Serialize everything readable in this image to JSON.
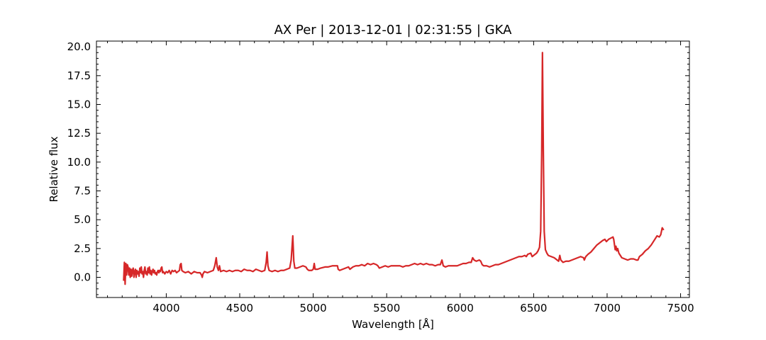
{
  "chart_data": {
    "type": "line",
    "title": "AX Per | 2013-12-01 | 02:31:55 | GKA",
    "xlabel": "Wavelength [Å]",
    "ylabel": "Relative flux",
    "xlim": [
      3525,
      7560
    ],
    "ylim": [
      -1.75,
      20.5
    ],
    "x_ticks": [
      4000,
      4500,
      5000,
      5500,
      6000,
      6500,
      7000,
      7500
    ],
    "x_tick_labels": [
      "4000",
      "4500",
      "5000",
      "5500",
      "6000",
      "6500",
      "7000",
      "7500"
    ],
    "y_ticks": [
      0.0,
      2.5,
      5.0,
      7.5,
      10.0,
      12.5,
      15.0,
      17.5,
      20.0
    ],
    "y_tick_labels": [
      "0.0",
      "2.5",
      "5.0",
      "7.5",
      "10.0",
      "12.5",
      "15.0",
      "17.5",
      "20.0"
    ],
    "grid": false,
    "series": [
      {
        "color": "#d62728",
        "points": [
          [
            3710,
            -0.3
          ],
          [
            3715,
            1.3
          ],
          [
            3720,
            -0.6
          ],
          [
            3725,
            1.2
          ],
          [
            3730,
            0.2
          ],
          [
            3735,
            1.1
          ],
          [
            3740,
            0.9
          ],
          [
            3745,
            0.2
          ],
          [
            3750,
            0.8
          ],
          [
            3755,
            0.0
          ],
          [
            3760,
            0.7
          ],
          [
            3765,
            0.1
          ],
          [
            3770,
            0.6
          ],
          [
            3775,
            0.8
          ],
          [
            3780,
            0.0
          ],
          [
            3785,
            0.5
          ],
          [
            3790,
            0.7
          ],
          [
            3795,
            0.0
          ],
          [
            3800,
            0.6
          ],
          [
            3805,
            0.3
          ],
          [
            3810,
            0.5
          ],
          [
            3815,
            0.1
          ],
          [
            3820,
            0.8
          ],
          [
            3825,
            0.4
          ],
          [
            3830,
            0.9
          ],
          [
            3835,
            0.3
          ],
          [
            3840,
            0.5
          ],
          [
            3845,
            0.0
          ],
          [
            3850,
            0.6
          ],
          [
            3855,
            0.9
          ],
          [
            3860,
            0.3
          ],
          [
            3865,
            0.5
          ],
          [
            3870,
            0.2
          ],
          [
            3875,
            0.8
          ],
          [
            3880,
            0.4
          ],
          [
            3885,
            0.9
          ],
          [
            3890,
            0.3
          ],
          [
            3895,
            0.6
          ],
          [
            3900,
            0.2
          ],
          [
            3905,
            0.5
          ],
          [
            3910,
            0.7
          ],
          [
            3915,
            0.4
          ],
          [
            3920,
            0.6
          ],
          [
            3925,
            0.3
          ],
          [
            3930,
            0.4
          ],
          [
            3935,
            0.2
          ],
          [
            3940,
            0.5
          ],
          [
            3945,
            0.6
          ],
          [
            3950,
            0.4
          ],
          [
            3955,
            0.6
          ],
          [
            3960,
            0.5
          ],
          [
            3965,
            0.8
          ],
          [
            3970,
            0.9
          ],
          [
            3975,
            0.4
          ],
          [
            3980,
            0.5
          ],
          [
            3990,
            0.3
          ],
          [
            4000,
            0.5
          ],
          [
            4010,
            0.4
          ],
          [
            4020,
            0.6
          ],
          [
            4030,
            0.3
          ],
          [
            4040,
            0.6
          ],
          [
            4050,
            0.5
          ],
          [
            4060,
            0.6
          ],
          [
            4070,
            0.4
          ],
          [
            4080,
            0.5
          ],
          [
            4090,
            0.6
          ],
          [
            4095,
            1.1
          ],
          [
            4101,
            1.2
          ],
          [
            4106,
            0.6
          ],
          [
            4115,
            0.5
          ],
          [
            4130,
            0.4
          ],
          [
            4150,
            0.5
          ],
          [
            4170,
            0.3
          ],
          [
            4190,
            0.5
          ],
          [
            4210,
            0.4
          ],
          [
            4230,
            0.4
          ],
          [
            4240,
            0.2
          ],
          [
            4245,
            0.0
          ],
          [
            4250,
            0.3
          ],
          [
            4260,
            0.5
          ],
          [
            4280,
            0.4
          ],
          [
            4300,
            0.5
          ],
          [
            4320,
            0.6
          ],
          [
            4330,
            1.0
          ],
          [
            4340,
            1.7
          ],
          [
            4347,
            0.9
          ],
          [
            4355,
            0.6
          ],
          [
            4362,
            1.0
          ],
          [
            4370,
            0.5
          ],
          [
            4390,
            0.6
          ],
          [
            4410,
            0.5
          ],
          [
            4430,
            0.6
          ],
          [
            4450,
            0.5
          ],
          [
            4470,
            0.6
          ],
          [
            4490,
            0.6
          ],
          [
            4510,
            0.5
          ],
          [
            4530,
            0.7
          ],
          [
            4550,
            0.6
          ],
          [
            4570,
            0.6
          ],
          [
            4590,
            0.5
          ],
          [
            4610,
            0.7
          ],
          [
            4630,
            0.6
          ],
          [
            4650,
            0.5
          ],
          [
            4670,
            0.6
          ],
          [
            4680,
            1.3
          ],
          [
            4686,
            2.2
          ],
          [
            4692,
            1.0
          ],
          [
            4700,
            0.6
          ],
          [
            4720,
            0.5
          ],
          [
            4740,
            0.6
          ],
          [
            4760,
            0.5
          ],
          [
            4780,
            0.6
          ],
          [
            4800,
            0.6
          ],
          [
            4820,
            0.7
          ],
          [
            4840,
            0.8
          ],
          [
            4850,
            1.5
          ],
          [
            4861,
            3.6
          ],
          [
            4868,
            1.4
          ],
          [
            4875,
            0.8
          ],
          [
            4890,
            0.8
          ],
          [
            4910,
            0.9
          ],
          [
            4930,
            1.0
          ],
          [
            4950,
            0.9
          ],
          [
            4960,
            0.7
          ],
          [
            4970,
            0.6
          ],
          [
            4990,
            0.6
          ],
          [
            5000,
            0.7
          ],
          [
            5007,
            1.2
          ],
          [
            5013,
            0.7
          ],
          [
            5030,
            0.7
          ],
          [
            5050,
            0.8
          ],
          [
            5080,
            0.9
          ],
          [
            5100,
            0.9
          ],
          [
            5130,
            1.0
          ],
          [
            5150,
            1.0
          ],
          [
            5165,
            1.0
          ],
          [
            5170,
            0.7
          ],
          [
            5180,
            0.6
          ],
          [
            5200,
            0.7
          ],
          [
            5220,
            0.8
          ],
          [
            5240,
            0.9
          ],
          [
            5250,
            0.7
          ],
          [
            5270,
            0.9
          ],
          [
            5290,
            1.0
          ],
          [
            5310,
            1.0
          ],
          [
            5330,
            1.1
          ],
          [
            5350,
            1.0
          ],
          [
            5370,
            1.2
          ],
          [
            5390,
            1.1
          ],
          [
            5410,
            1.2
          ],
          [
            5430,
            1.1
          ],
          [
            5440,
            1.0
          ],
          [
            5450,
            0.8
          ],
          [
            5470,
            0.9
          ],
          [
            5490,
            1.0
          ],
          [
            5510,
            0.9
          ],
          [
            5530,
            1.0
          ],
          [
            5550,
            1.0
          ],
          [
            5570,
            1.0
          ],
          [
            5590,
            1.0
          ],
          [
            5610,
            0.9
          ],
          [
            5630,
            1.0
          ],
          [
            5650,
            1.0
          ],
          [
            5670,
            1.1
          ],
          [
            5690,
            1.2
          ],
          [
            5710,
            1.1
          ],
          [
            5730,
            1.2
          ],
          [
            5750,
            1.1
          ],
          [
            5770,
            1.2
          ],
          [
            5790,
            1.1
          ],
          [
            5810,
            1.1
          ],
          [
            5830,
            1.0
          ],
          [
            5850,
            1.1
          ],
          [
            5865,
            1.1
          ],
          [
            5876,
            1.5
          ],
          [
            5885,
            1.0
          ],
          [
            5900,
            0.9
          ],
          [
            5920,
            1.0
          ],
          [
            5940,
            1.0
          ],
          [
            5960,
            1.0
          ],
          [
            5980,
            1.0
          ],
          [
            6000,
            1.1
          ],
          [
            6020,
            1.2
          ],
          [
            6040,
            1.2
          ],
          [
            6060,
            1.3
          ],
          [
            6075,
            1.3
          ],
          [
            6085,
            1.7
          ],
          [
            6095,
            1.5
          ],
          [
            6110,
            1.4
          ],
          [
            6130,
            1.5
          ],
          [
            6140,
            1.4
          ],
          [
            6150,
            1.1
          ],
          [
            6160,
            1.0
          ],
          [
            6180,
            1.0
          ],
          [
            6200,
            0.9
          ],
          [
            6220,
            1.0
          ],
          [
            6240,
            1.1
          ],
          [
            6260,
            1.1
          ],
          [
            6280,
            1.2
          ],
          [
            6300,
            1.3
          ],
          [
            6320,
            1.4
          ],
          [
            6340,
            1.5
          ],
          [
            6360,
            1.6
          ],
          [
            6380,
            1.7
          ],
          [
            6400,
            1.8
          ],
          [
            6420,
            1.8
          ],
          [
            6440,
            1.9
          ],
          [
            6450,
            1.8
          ],
          [
            6460,
            2.0
          ],
          [
            6480,
            2.1
          ],
          [
            6490,
            1.8
          ],
          [
            6500,
            1.9
          ],
          [
            6510,
            2.0
          ],
          [
            6520,
            2.1
          ],
          [
            6530,
            2.3
          ],
          [
            6540,
            2.6
          ],
          [
            6548,
            4.0
          ],
          [
            6555,
            11.0
          ],
          [
            6560,
            19.5
          ],
          [
            6566,
            11.0
          ],
          [
            6572,
            4.0
          ],
          [
            6580,
            2.4
          ],
          [
            6590,
            2.1
          ],
          [
            6600,
            1.9
          ],
          [
            6620,
            1.8
          ],
          [
            6640,
            1.7
          ],
          [
            6660,
            1.5
          ],
          [
            6670,
            1.4
          ],
          [
            6678,
            1.9
          ],
          [
            6685,
            1.5
          ],
          [
            6700,
            1.3
          ],
          [
            6720,
            1.4
          ],
          [
            6740,
            1.4
          ],
          [
            6760,
            1.5
          ],
          [
            6780,
            1.6
          ],
          [
            6800,
            1.7
          ],
          [
            6820,
            1.8
          ],
          [
            6840,
            1.7
          ],
          [
            6845,
            1.5
          ],
          [
            6855,
            1.8
          ],
          [
            6870,
            2.0
          ],
          [
            6890,
            2.2
          ],
          [
            6910,
            2.5
          ],
          [
            6930,
            2.8
          ],
          [
            6950,
            3.0
          ],
          [
            6970,
            3.2
          ],
          [
            6985,
            3.3
          ],
          [
            6995,
            3.1
          ],
          [
            7010,
            3.3
          ],
          [
            7025,
            3.4
          ],
          [
            7040,
            3.5
          ],
          [
            7045,
            3.3
          ],
          [
            7055,
            2.4
          ],
          [
            7060,
            2.7
          ],
          [
            7066,
            2.3
          ],
          [
            7072,
            2.5
          ],
          [
            7080,
            2.1
          ],
          [
            7090,
            1.9
          ],
          [
            7100,
            1.7
          ],
          [
            7120,
            1.6
          ],
          [
            7140,
            1.5
          ],
          [
            7160,
            1.6
          ],
          [
            7180,
            1.6
          ],
          [
            7200,
            1.5
          ],
          [
            7210,
            1.5
          ],
          [
            7220,
            1.8
          ],
          [
            7240,
            2.0
          ],
          [
            7260,
            2.3
          ],
          [
            7280,
            2.5
          ],
          [
            7300,
            2.8
          ],
          [
            7320,
            3.2
          ],
          [
            7340,
            3.6
          ],
          [
            7355,
            3.5
          ],
          [
            7365,
            3.7
          ],
          [
            7375,
            4.3
          ],
          [
            7385,
            4.1
          ]
        ]
      }
    ]
  }
}
